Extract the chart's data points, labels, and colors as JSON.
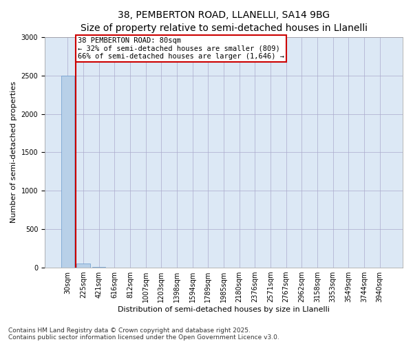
{
  "title1": "38, PEMBERTON ROAD, LLANELLI, SA14 9BG",
  "title2": "Size of property relative to semi-detached houses in Llanelli",
  "xlabel": "Distribution of semi-detached houses by size in Llanelli",
  "ylabel": "Number of semi-detached properties",
  "footnote": "Contains HM Land Registry data © Crown copyright and database right 2025.\nContains public sector information licensed under the Open Government Licence v3.0.",
  "bar_labels": [
    "30sqm",
    "225sqm",
    "421sqm",
    "616sqm",
    "812sqm",
    "1007sqm",
    "1203sqm",
    "1398sqm",
    "1594sqm",
    "1789sqm",
    "1985sqm",
    "2180sqm",
    "2376sqm",
    "2571sqm",
    "2767sqm",
    "2962sqm",
    "3158sqm",
    "3353sqm",
    "3549sqm",
    "3744sqm",
    "3940sqm"
  ],
  "bar_heights": [
    2500,
    50,
    5,
    2,
    1,
    1,
    1,
    1,
    1,
    1,
    1,
    1,
    1,
    1,
    1,
    1,
    1,
    1,
    1,
    1,
    1
  ],
  "bar_color": "#b8d0e8",
  "bar_edge_color": "#6699cc",
  "property_line_x": 0.5,
  "property_size": "80sqm",
  "pct_smaller": 32,
  "pct_larger": 66,
  "count_smaller": 809,
  "count_larger": 1646,
  "annotation_box_color": "#cc0000",
  "ylim": [
    0,
    3000
  ],
  "yticks": [
    0,
    500,
    1000,
    1500,
    2000,
    2500,
    3000
  ],
  "plot_bg_color": "#dce8f5",
  "background_color": "#ffffff",
  "grid_color": "#aaaacc",
  "title_fontsize": 10,
  "subtitle_fontsize": 9,
  "axis_label_fontsize": 8,
  "tick_fontsize": 7,
  "annotation_fontsize": 7.5,
  "footnote_fontsize": 6.5
}
